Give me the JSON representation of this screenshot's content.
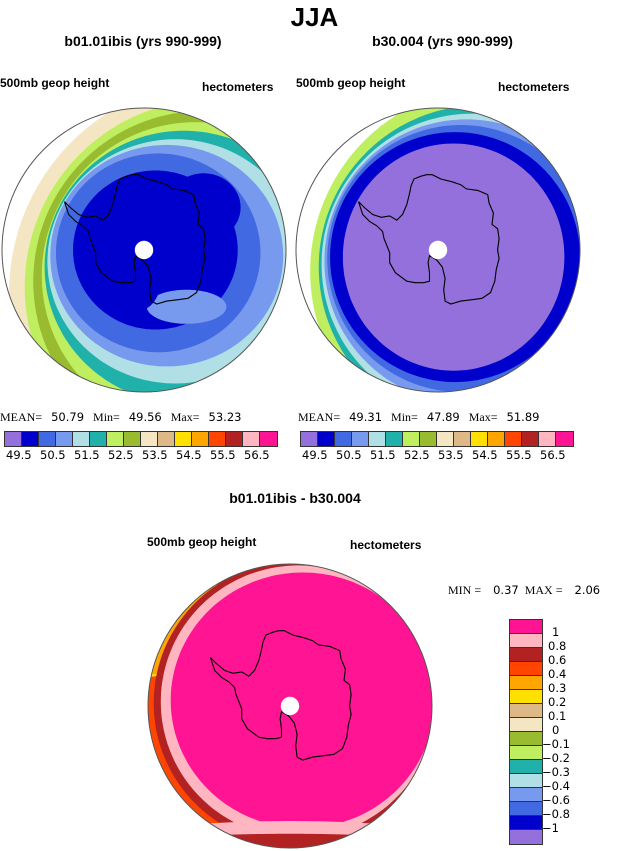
{
  "title": "JJA",
  "panels": [
    {
      "title": "b01.01ibis (yrs 990-999)",
      "left_label": "500mb geop height",
      "right_label": "hectometers",
      "stats": {
        "mean_label": "MEAN=",
        "mean": "50.79",
        "min_label": "Min=",
        "min": "49.56",
        "max_label": "Max=",
        "max": "53.23"
      }
    },
    {
      "title": "b30.004 (yrs 990-999)",
      "left_label": "500mb geop height",
      "right_label": "hectometers",
      "stats": {
        "mean_label": "MEAN=",
        "mean": "49.31",
        "min_label": "Min=",
        "min": "47.89",
        "max_label": "Max=",
        "max": "51.89"
      }
    },
    {
      "title": "b01.01ibis - b30.004",
      "left_label": "500mb geop height",
      "right_label": "hectometers",
      "stats": {
        "min_label": "MIN =",
        "min": "0.37",
        "max_label": "MAX =",
        "max": "2.06"
      }
    }
  ],
  "chart_data": [
    {
      "type": "heatmap",
      "title": "b01.01ibis (yrs 990-999)",
      "field": "500mb geop height",
      "units": "hectometers",
      "projection": "south polar stereographic",
      "mean": 50.79,
      "min": 49.56,
      "max": 53.23,
      "colorbar": {
        "orientation": "horizontal",
        "tick_labels": [
          "49.5",
          "50.5",
          "51.5",
          "52.5",
          "53.5",
          "54.5",
          "55.5",
          "56.5"
        ],
        "levels": [
          49.5,
          50,
          50.5,
          51,
          51.5,
          52,
          52.5,
          53,
          53.5,
          54,
          54.5,
          55,
          55.5,
          56,
          56.5
        ],
        "colors": [
          "#9370db",
          "#0000cd",
          "#4169e1",
          "#7799ee",
          "#b0e0e6",
          "#20b2aa",
          "#bfef60",
          "#98bb30",
          "#f5e6c3",
          "#deb887",
          "#ffe000",
          "#ffa500",
          "#ff4500",
          "#b22222",
          "#ffb6c1",
          "#ff1493"
        ]
      },
      "bands_from_pole_outward": [
        "#0000cd",
        "#4169e1",
        "#7799ee",
        "#b0e0e6",
        "#20b2aa",
        "#bfef60",
        "#98bb30",
        "#bfef60",
        "#f5e6c3"
      ]
    },
    {
      "type": "heatmap",
      "title": "b30.004 (yrs 990-999)",
      "field": "500mb geop height",
      "units": "hectometers",
      "projection": "south polar stereographic",
      "mean": 49.31,
      "min": 47.89,
      "max": 51.89,
      "colorbar": {
        "orientation": "horizontal",
        "tick_labels": [
          "49.5",
          "50.5",
          "51.5",
          "52.5",
          "53.5",
          "54.5",
          "55.5",
          "56.5"
        ],
        "levels": [
          49.5,
          50,
          50.5,
          51,
          51.5,
          52,
          52.5,
          53,
          53.5,
          54,
          54.5,
          55,
          55.5,
          56,
          56.5
        ],
        "colors": [
          "#9370db",
          "#0000cd",
          "#4169e1",
          "#7799ee",
          "#b0e0e6",
          "#20b2aa",
          "#bfef60",
          "#98bb30",
          "#f5e6c3",
          "#deb887",
          "#ffe000",
          "#ffa500",
          "#ff4500",
          "#b22222",
          "#ffb6c1",
          "#ff1493"
        ]
      }
    },
    {
      "type": "heatmap",
      "title": "b01.01ibis - b30.004",
      "field": "500mb geop height",
      "units": "hectometers",
      "projection": "south polar stereographic",
      "min": 0.37,
      "max": 2.06,
      "colorbar": {
        "orientation": "vertical",
        "tick_labels": [
          "1",
          "0.8",
          "0.6",
          "0.4",
          "0.3",
          "0.2",
          "0.1",
          "0",
          "−0.1",
          "−0.2",
          "−0.3",
          "−0.4",
          "−0.6",
          "−0.8",
          "−1"
        ],
        "colors_top_to_bottom": [
          "#ff1493",
          "#ffb6c1",
          "#b22222",
          "#ff4500",
          "#ffa500",
          "#ffe000",
          "#deb887",
          "#f5e6c3",
          "#98bb30",
          "#bfef60",
          "#20b2aa",
          "#b0e0e6",
          "#7799ee",
          "#4169e1",
          "#0000cd",
          "#9370db"
        ]
      }
    }
  ]
}
